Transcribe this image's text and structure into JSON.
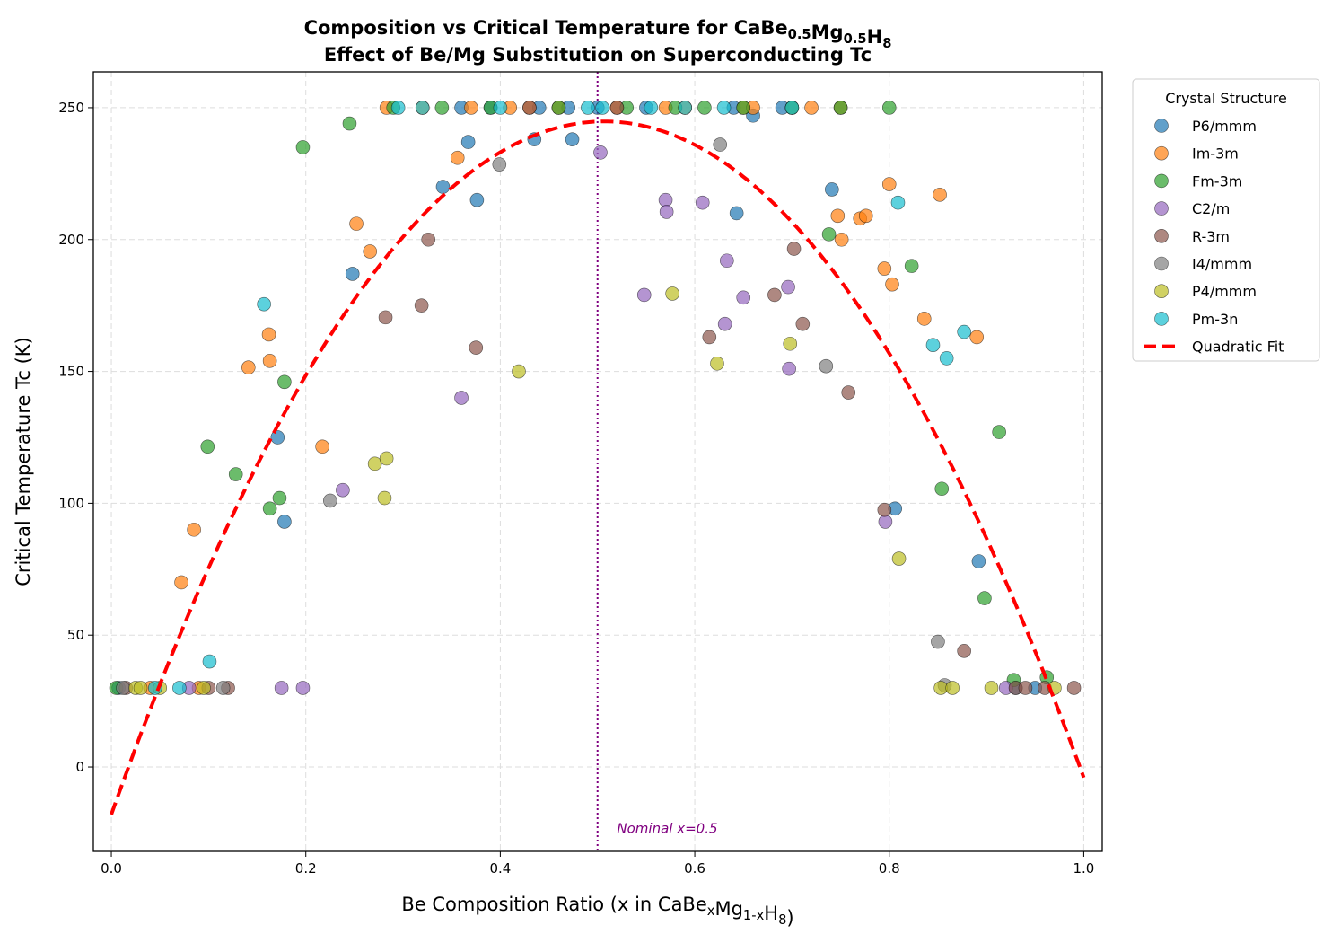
{
  "chart_data": {
    "type": "scatter",
    "title": [
      "Composition vs Critical Temperature for CaBe_{0.5}Mg_{0.5}H_{8}",
      "Effect of Be/Mg Substitution on Superconducting Tc"
    ],
    "xlabel": "Be Composition Ratio (x in CaBe_{x}Mg_{1-x}H_{8})",
    "ylabel": "Critical Temperature Tc (K)",
    "xlim": [
      -0.0185,
      1.019
    ],
    "ylim": [
      -32,
      263.6
    ],
    "xticks": [
      0.0,
      0.2,
      0.4,
      0.6,
      0.8,
      1.0
    ],
    "xtick_labels": [
      "0.0",
      "0.2",
      "0.4",
      "0.6",
      "0.8",
      "1.0"
    ],
    "yticks": [
      0,
      50,
      100,
      150,
      200,
      250
    ],
    "ytick_labels": [
      "0",
      "50",
      "100",
      "150",
      "200",
      "250"
    ],
    "grid": true,
    "legend": {
      "title": "Crystal Structure",
      "placement": "outside-top-right"
    },
    "series": [
      {
        "name": "P6/mmm",
        "color": "#1f77b4",
        "points": [
          [
            0.248,
            187
          ],
          [
            0.171,
            125
          ],
          [
            0.178,
            93
          ],
          [
            0.341,
            220
          ],
          [
            0.367,
            237
          ],
          [
            0.376,
            215
          ],
          [
            0.435,
            238
          ],
          [
            0.474,
            238
          ],
          [
            0.643,
            210
          ],
          [
            0.66,
            247
          ],
          [
            0.741,
            219
          ],
          [
            0.806,
            98
          ],
          [
            0.892,
            78
          ],
          [
            0.36,
            250
          ],
          [
            0.39,
            250
          ],
          [
            0.44,
            250
          ],
          [
            0.47,
            250
          ],
          [
            0.5,
            250
          ],
          [
            0.55,
            250
          ],
          [
            0.64,
            250
          ],
          [
            0.69,
            250
          ],
          [
            0.0075,
            30
          ],
          [
            0.93,
            30
          ],
          [
            0.95,
            30
          ]
        ]
      },
      {
        "name": "Im-3m",
        "color": "#ff7f0e",
        "points": [
          [
            0.072,
            70
          ],
          [
            0.085,
            90
          ],
          [
            0.141,
            151.5
          ],
          [
            0.162,
            164
          ],
          [
            0.163,
            154
          ],
          [
            0.217,
            121.5
          ],
          [
            0.252,
            206
          ],
          [
            0.266,
            195.5
          ],
          [
            0.356,
            231
          ],
          [
            0.747,
            209
          ],
          [
            0.751,
            200
          ],
          [
            0.77,
            208
          ],
          [
            0.776,
            209
          ],
          [
            0.8,
            221
          ],
          [
            0.795,
            189
          ],
          [
            0.803,
            183
          ],
          [
            0.836,
            170
          ],
          [
            0.852,
            217
          ],
          [
            0.89,
            163
          ],
          [
            0.283,
            250
          ],
          [
            0.32,
            250
          ],
          [
            0.37,
            250
          ],
          [
            0.41,
            250
          ],
          [
            0.43,
            250
          ],
          [
            0.46,
            250
          ],
          [
            0.52,
            250
          ],
          [
            0.57,
            250
          ],
          [
            0.59,
            250
          ],
          [
            0.65,
            250
          ],
          [
            0.66,
            250
          ],
          [
            0.7,
            250
          ],
          [
            0.72,
            250
          ],
          [
            0.75,
            250
          ],
          [
            0.04,
            30
          ],
          [
            0.09,
            30
          ]
        ]
      },
      {
        "name": "Fm-3m",
        "color": "#2ca02c",
        "points": [
          [
            0.197,
            235
          ],
          [
            0.245,
            244
          ],
          [
            0.099,
            121.5
          ],
          [
            0.128,
            111
          ],
          [
            0.178,
            146
          ],
          [
            0.163,
            98
          ],
          [
            0.173,
            102
          ],
          [
            0.738,
            202
          ],
          [
            0.823,
            190
          ],
          [
            0.854,
            105.5
          ],
          [
            0.913,
            127
          ],
          [
            0.898,
            64
          ],
          [
            0.928,
            33
          ],
          [
            0.962,
            34
          ],
          [
            0.29,
            250
          ],
          [
            0.34,
            250
          ],
          [
            0.39,
            250
          ],
          [
            0.46,
            250
          ],
          [
            0.53,
            250
          ],
          [
            0.58,
            250
          ],
          [
            0.61,
            250
          ],
          [
            0.65,
            250
          ],
          [
            0.7,
            250
          ],
          [
            0.75,
            250
          ],
          [
            0.8,
            250
          ],
          [
            0.005,
            30
          ]
        ]
      },
      {
        "name": "C2/m",
        "color": "#9467bd",
        "points": [
          [
            0.503,
            233
          ],
          [
            0.57,
            215
          ],
          [
            0.571,
            210.5
          ],
          [
            0.608,
            214
          ],
          [
            0.548,
            179
          ],
          [
            0.631,
            168
          ],
          [
            0.633,
            192
          ],
          [
            0.65,
            178
          ],
          [
            0.696,
            182
          ],
          [
            0.697,
            151
          ],
          [
            0.796,
            93
          ],
          [
            0.36,
            140
          ],
          [
            0.238,
            105
          ],
          [
            0.08,
            30
          ],
          [
            0.175,
            30
          ],
          [
            0.197,
            30
          ],
          [
            0.92,
            30
          ]
        ]
      },
      {
        "name": "R-3m",
        "color": "#8c564b",
        "points": [
          [
            0.326,
            200
          ],
          [
            0.319,
            175
          ],
          [
            0.282,
            170.5
          ],
          [
            0.375,
            159
          ],
          [
            0.615,
            163
          ],
          [
            0.682,
            179
          ],
          [
            0.702,
            196.5
          ],
          [
            0.711,
            168
          ],
          [
            0.758,
            142
          ],
          [
            0.795,
            97.5
          ],
          [
            0.877,
            44
          ],
          [
            0.43,
            250
          ],
          [
            0.52,
            250
          ],
          [
            0.015,
            30
          ],
          [
            0.1,
            30
          ],
          [
            0.12,
            30
          ],
          [
            0.93,
            30
          ],
          [
            0.94,
            30
          ],
          [
            0.96,
            30
          ],
          [
            0.99,
            30
          ]
        ]
      },
      {
        "name": "I4/mmm",
        "color": "#7f7f7f",
        "points": [
          [
            0.399,
            228.5
          ],
          [
            0.626,
            236
          ],
          [
            0.735,
            152
          ],
          [
            0.225,
            101
          ],
          [
            0.85,
            47.5
          ],
          [
            0.857,
            31
          ],
          [
            0.012,
            30
          ],
          [
            0.115,
            30
          ]
        ]
      },
      {
        "name": "P4/mmm",
        "color": "#bcbd22",
        "points": [
          [
            0.419,
            150
          ],
          [
            0.271,
            115
          ],
          [
            0.283,
            117
          ],
          [
            0.281,
            102
          ],
          [
            0.577,
            179.5
          ],
          [
            0.623,
            153
          ],
          [
            0.698,
            160.5
          ],
          [
            0.81,
            79
          ],
          [
            0.025,
            30
          ],
          [
            0.03,
            30
          ],
          [
            0.05,
            30
          ],
          [
            0.095,
            30
          ],
          [
            0.853,
            30
          ],
          [
            0.865,
            30
          ],
          [
            0.905,
            30
          ],
          [
            0.97,
            30
          ]
        ]
      },
      {
        "name": "Pm-3n",
        "color": "#17becf",
        "points": [
          [
            0.157,
            175.5
          ],
          [
            0.101,
            40
          ],
          [
            0.809,
            214
          ],
          [
            0.845,
            160
          ],
          [
            0.859,
            155
          ],
          [
            0.877,
            165
          ],
          [
            0.295,
            250
          ],
          [
            0.32,
            250
          ],
          [
            0.4,
            250
          ],
          [
            0.49,
            250
          ],
          [
            0.505,
            250
          ],
          [
            0.555,
            250
          ],
          [
            0.59,
            250
          ],
          [
            0.63,
            250
          ],
          [
            0.7,
            250
          ],
          [
            0.045,
            30
          ],
          [
            0.07,
            30
          ]
        ]
      }
    ],
    "fit": {
      "name": "Quadratic Fit",
      "color": "#ff0000",
      "style": "dashed",
      "coefficients": {
        "a": -1023,
        "b": 1037,
        "c": -18
      }
    },
    "vline": {
      "x": 0.5,
      "color": "#800080",
      "style": "dotted",
      "annotation": "Nominal x=0.5",
      "annotation_at": [
        0.52,
        -25
      ]
    }
  }
}
